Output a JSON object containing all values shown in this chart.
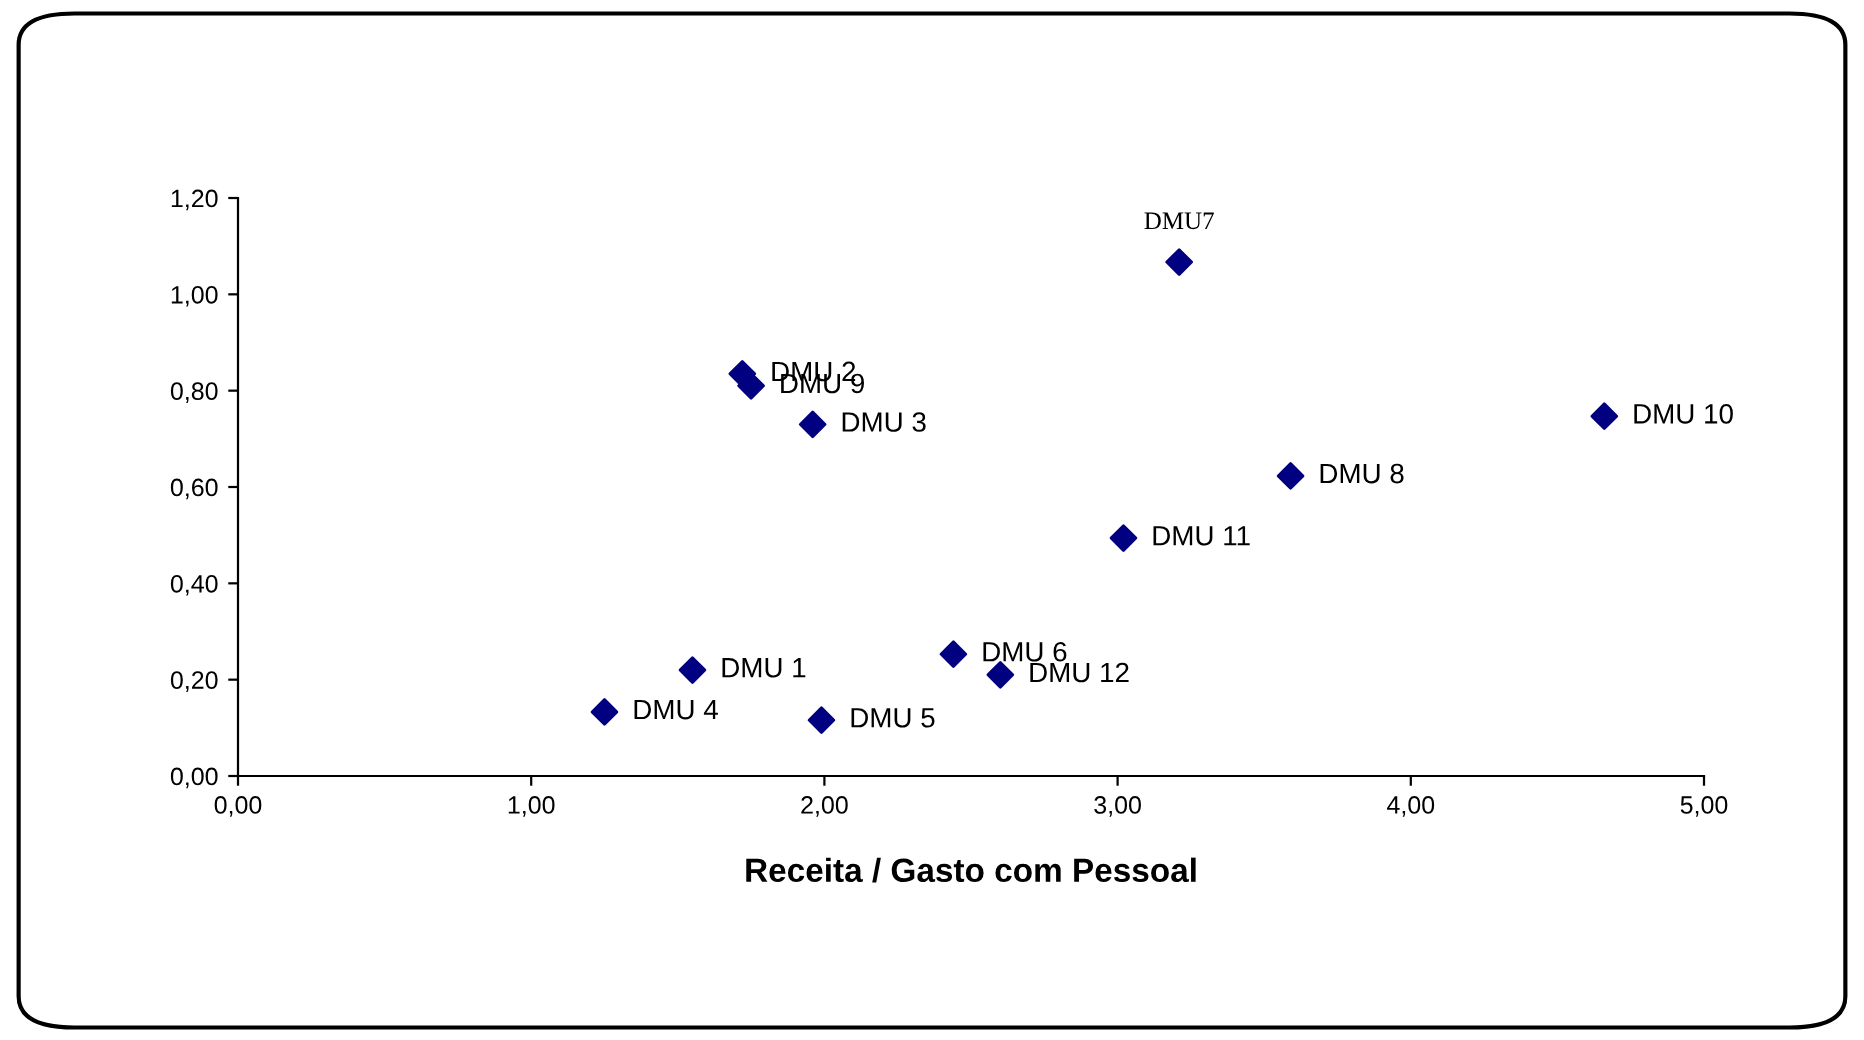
{
  "chart_data": {
    "type": "scatter",
    "xlabel": "Receita / Gasto com Pessoal",
    "x": [
      1.55,
      1.72,
      1.96,
      1.25,
      1.99,
      2.44,
      3.21,
      3.59,
      1.75,
      4.66,
      3.02,
      2.6
    ],
    "series": [
      {
        "color": "#000080",
        "values": [
          0.22,
          0.835,
          0.73,
          0.133,
          0.116,
          0.253,
          1.067,
          0.623,
          0.81,
          0.747,
          0.494,
          0.21
        ]
      }
    ],
    "marker": "diamond",
    "annotations": [
      {
        "text": "DMU 1",
        "x": 1.55,
        "y": 0.22
      },
      {
        "text": "DMU 2",
        "x": 1.72,
        "y": 0.835
      },
      {
        "text": "DMU 3",
        "x": 1.96,
        "y": 0.73
      },
      {
        "text": "DMU 4",
        "x": 1.25,
        "y": 0.133
      },
      {
        "text": "DMU 5",
        "x": 1.99,
        "y": 0.116
      },
      {
        "text": "DMU 6",
        "x": 2.44,
        "y": 0.253
      },
      {
        "text": "DMU7",
        "x": 3.21,
        "y": 1.067
      },
      {
        "text": "DMU 8",
        "x": 3.59,
        "y": 0.623
      },
      {
        "text": "DMU 9",
        "x": 1.75,
        "y": 0.81
      },
      {
        "text": "DMU 10",
        "x": 4.66,
        "y": 0.747
      },
      {
        "text": "DMU 11",
        "x": 3.02,
        "y": 0.494
      },
      {
        "text": "DMU 12",
        "x": 2.6,
        "y": 0.21
      }
    ],
    "xlim": [
      0,
      5
    ],
    "xticks": [
      {
        "value": 0,
        "label": "0,00"
      },
      {
        "value": 1,
        "label": "1,00"
      },
      {
        "value": 2,
        "label": "2,00"
      },
      {
        "value": 3,
        "label": "3,00"
      },
      {
        "value": 4,
        "label": "4,00"
      },
      {
        "value": 5,
        "label": "5,00"
      }
    ],
    "ylim": [
      0,
      1.2
    ],
    "yticks": [
      {
        "value": 0,
        "label": "0,00"
      },
      {
        "value": 0.2,
        "label": "0,20"
      },
      {
        "value": 0.4,
        "label": "0,40"
      },
      {
        "value": 0.6,
        "label": "0,60"
      },
      {
        "value": 0.8,
        "label": "0,80"
      },
      {
        "value": 1.0,
        "label": "1,00"
      },
      {
        "value": 1.2,
        "label": "1,20"
      }
    ],
    "grid": false,
    "legend": false
  }
}
